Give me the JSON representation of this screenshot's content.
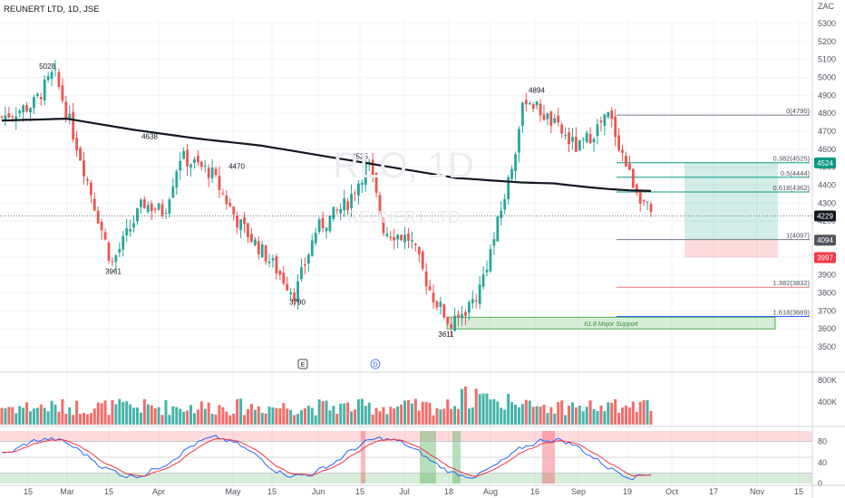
{
  "header": {
    "title": "REUNERT LTD, 1D, JSE"
  },
  "watermark": {
    "symbol": "RLO, 1D",
    "name": "REUNERT LTD"
  },
  "chart_data": {
    "type": "candlestick",
    "currency": "ZAC",
    "y_ticks": [
      "5300",
      "5200",
      "5100",
      "5000",
      "4900",
      "4800",
      "4700",
      "4600",
      "4500",
      "4400",
      "4300",
      "4200",
      "4100",
      "4000",
      "3900",
      "3800",
      "3700",
      "3600",
      "3500"
    ],
    "ylim": [
      3450,
      5330
    ],
    "x_ticks": [
      "15",
      "Mar",
      "15",
      "Apr",
      "May",
      "15",
      "Jun",
      "15",
      "Jul",
      "18",
      "Aug",
      "16",
      "Sep",
      "19",
      "Oct",
      "17",
      "Nov",
      "15"
    ],
    "price_labels": {
      "high_feb": "5028",
      "low_feb": "3961",
      "level_1": "4638",
      "high_apr": "4470",
      "low_may": "3790",
      "level_2": "4525",
      "low_jul": "3611",
      "high_aug": "4894"
    },
    "fibonacci": [
      {
        "label": "0(4790)",
        "value": 4790
      },
      {
        "label": "0.382(4525)",
        "value": 4525
      },
      {
        "label": "0.5(4444)",
        "value": 4444
      },
      {
        "label": "0.618(4362)",
        "value": 4362
      },
      {
        "label": "1(4097)",
        "value": 4097
      },
      {
        "label": "1.382(3832)",
        "value": 3832
      },
      {
        "label": "1.618(3669)",
        "value": 3669
      }
    ],
    "support_zone": {
      "label": "61.8 Major Support",
      "from": 3600,
      "to": 3665
    },
    "position": {
      "target": "4524",
      "entry": "4094",
      "stop": "3997"
    },
    "last_price": "4229",
    "moving_average": [
      {
        "t": 0,
        "v": 4760
      },
      {
        "t": 0.1,
        "v": 4770
      },
      {
        "t": 0.2,
        "v": 4710
      },
      {
        "t": 0.3,
        "v": 4660
      },
      {
        "t": 0.4,
        "v": 4620
      },
      {
        "t": 0.5,
        "v": 4560
      },
      {
        "t": 0.6,
        "v": 4500
      },
      {
        "t": 0.7,
        "v": 4440
      },
      {
        "t": 0.8,
        "v": 4415
      },
      {
        "t": 0.85,
        "v": 4410
      },
      {
        "t": 0.9,
        "v": 4390
      },
      {
        "t": 0.93,
        "v": 4380
      },
      {
        "t": 0.96,
        "v": 4372
      },
      {
        "t": 1,
        "v": 4368
      }
    ],
    "anchors": [
      {
        "t": 0.0,
        "v": 4780
      },
      {
        "t": 0.06,
        "v": 4850
      },
      {
        "t": 0.1,
        "v": 5028
      },
      {
        "t": 0.15,
        "v": 4560
      },
      {
        "t": 0.21,
        "v": 3961
      },
      {
        "t": 0.27,
        "v": 4300
      },
      {
        "t": 0.31,
        "v": 4250
      },
      {
        "t": 0.34,
        "v": 4560
      },
      {
        "t": 0.4,
        "v": 4470
      },
      {
        "t": 0.45,
        "v": 4200
      },
      {
        "t": 0.52,
        "v": 3950
      },
      {
        "t": 0.56,
        "v": 3790
      },
      {
        "t": 0.6,
        "v": 4150
      },
      {
        "t": 0.66,
        "v": 4300
      },
      {
        "t": 0.7,
        "v": 4525
      },
      {
        "t": 0.73,
        "v": 4150
      },
      {
        "t": 0.78,
        "v": 4100
      },
      {
        "t": 0.82,
        "v": 3800
      },
      {
        "t": 0.86,
        "v": 3611
      },
      {
        "t": 0.91,
        "v": 3800
      },
      {
        "t": 0.94,
        "v": 4100
      },
      {
        "t": 0.97,
        "v": 4450
      },
      {
        "t": 1.0,
        "v": 4894
      },
      {
        "t": 1.05,
        "v": 4750
      },
      {
        "t": 1.1,
        "v": 4600
      },
      {
        "t": 1.16,
        "v": 4790
      },
      {
        "t": 1.2,
        "v": 4450
      },
      {
        "t": 1.24,
        "v": 4229
      }
    ],
    "volume_ticks": [
      "800K",
      "400K"
    ],
    "oscillator_ticks": [
      "80",
      "40",
      "0"
    ]
  }
}
